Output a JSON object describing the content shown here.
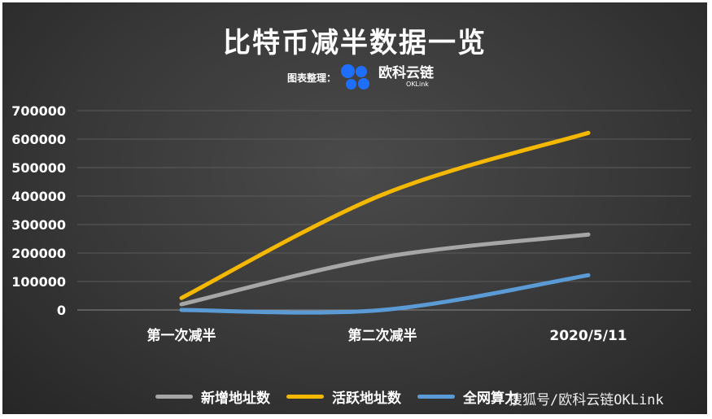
{
  "chart_data": {
    "type": "line",
    "title": "比特币减半数据一览",
    "source_prefix": "图表整理：",
    "source_brand": "欧科云链",
    "source_brand_sub": "OKLink",
    "categories": [
      "第一次减半",
      "第二次减半",
      "2020/5/11"
    ],
    "ylim": [
      0,
      700000
    ],
    "yticks": [
      0,
      100000,
      200000,
      300000,
      400000,
      500000,
      600000,
      700000
    ],
    "grid": true,
    "legend_position": "bottom",
    "series": [
      {
        "name": "新增地址数",
        "color": "#a6a6a6",
        "values": [
          20000,
          185000,
          265000
        ]
      },
      {
        "name": "活跃地址数",
        "color": "#f5b800",
        "values": [
          42000,
          405000,
          622000
        ]
      },
      {
        "name": "全网算力",
        "color": "#5b9bd5",
        "values": [
          0,
          0,
          122000
        ]
      }
    ],
    "watermark": "搜狐号/欧科云链OKLink",
    "colors": {
      "logo": "#1f6fff",
      "grid": "#5a5a5a",
      "axis": "#8a8a8a"
    }
  }
}
